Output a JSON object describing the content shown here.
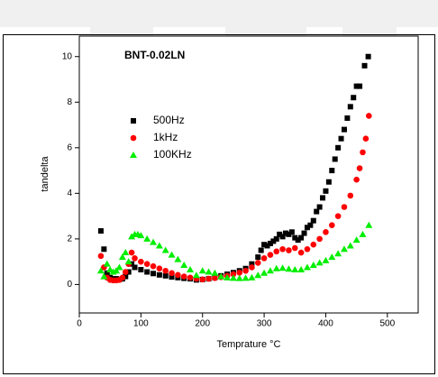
{
  "chart_data": {
    "type": "scatter",
    "annotation": "BNT-0.02LN",
    "x_label": "Temprature °C",
    "y_label": "tandelta",
    "xlim": [
      0,
      550
    ],
    "ylim": [
      -1.25,
      10.9
    ],
    "xticks": [
      0,
      100,
      200,
      300,
      400,
      500
    ],
    "yticks": [
      0,
      2,
      4,
      6,
      8,
      10
    ],
    "legend": "upper left",
    "series": [
      {
        "name": "500Hz",
        "color": "#000000",
        "marker": "square",
        "x": [
          35,
          40,
          45,
          50,
          55,
          60,
          65,
          70,
          75,
          80,
          85,
          90,
          100,
          110,
          120,
          130,
          140,
          150,
          160,
          170,
          180,
          190,
          200,
          210,
          220,
          230,
          240,
          250,
          260,
          270,
          280,
          290,
          295,
          300,
          305,
          310,
          315,
          320,
          325,
          330,
          335,
          340,
          345,
          350,
          355,
          360,
          365,
          370,
          375,
          380,
          385,
          390,
          395,
          400,
          405,
          410,
          415,
          420,
          425,
          430,
          435,
          440,
          445,
          450,
          455,
          463,
          469
        ],
        "values": [
          2.35,
          1.55,
          0.5,
          0.3,
          0.25,
          0.25,
          0.22,
          0.25,
          0.35,
          0.55,
          0.9,
          0.75,
          0.65,
          0.55,
          0.48,
          0.42,
          0.38,
          0.33,
          0.3,
          0.27,
          0.25,
          0.2,
          0.22,
          0.25,
          0.3,
          0.38,
          0.45,
          0.52,
          0.6,
          0.7,
          0.9,
          1.2,
          1.5,
          1.75,
          1.7,
          1.8,
          1.9,
          2.0,
          2.2,
          2.1,
          2.25,
          2.2,
          2.3,
          2.05,
          1.95,
          2.05,
          2.25,
          2.5,
          2.6,
          2.8,
          3.2,
          3.4,
          3.8,
          4.1,
          4.5,
          5.0,
          5.5,
          6.0,
          6.4,
          6.8,
          7.3,
          7.8,
          8.2,
          8.7,
          8.7,
          9.6,
          10.0
        ]
      },
      {
        "name": "1kHz",
        "color": "#ff0000",
        "marker": "circle",
        "x": [
          35,
          40,
          45,
          50,
          55,
          60,
          65,
          70,
          75,
          80,
          85,
          90,
          100,
          110,
          120,
          130,
          140,
          150,
          160,
          170,
          180,
          190,
          200,
          210,
          220,
          230,
          240,
          250,
          260,
          270,
          280,
          290,
          300,
          310,
          320,
          330,
          340,
          350,
          360,
          370,
          380,
          390,
          400,
          410,
          420,
          430,
          440,
          450,
          455,
          460,
          465,
          470
        ],
        "values": [
          1.25,
          0.75,
          0.3,
          0.2,
          0.18,
          0.18,
          0.2,
          0.3,
          0.55,
          0.9,
          1.4,
          1.15,
          1.0,
          0.9,
          0.8,
          0.7,
          0.6,
          0.5,
          0.42,
          0.35,
          0.3,
          0.25,
          0.22,
          0.25,
          0.28,
          0.32,
          0.38,
          0.45,
          0.52,
          0.6,
          0.75,
          0.95,
          1.15,
          1.3,
          1.45,
          1.55,
          1.5,
          1.6,
          1.4,
          1.55,
          1.75,
          2.0,
          2.3,
          2.6,
          3.0,
          3.4,
          3.9,
          4.6,
          5.1,
          5.8,
          6.4,
          7.4
        ]
      },
      {
        "name": "100KHz",
        "color": "#00ee00",
        "marker": "triangle",
        "x": [
          35,
          40,
          45,
          50,
          55,
          60,
          65,
          70,
          75,
          80,
          85,
          90,
          95,
          100,
          110,
          120,
          130,
          140,
          150,
          160,
          170,
          180,
          190,
          200,
          210,
          220,
          230,
          240,
          250,
          260,
          270,
          280,
          290,
          300,
          310,
          320,
          330,
          340,
          350,
          360,
          370,
          380,
          390,
          400,
          410,
          420,
          430,
          440,
          450,
          460,
          470
        ],
        "values": [
          0.6,
          0.35,
          0.9,
          0.65,
          0.55,
          0.6,
          0.75,
          1.2,
          1.4,
          1.0,
          2.1,
          2.2,
          2.2,
          2.15,
          2.0,
          1.85,
          1.7,
          1.5,
          1.3,
          1.1,
          0.85,
          0.65,
          0.4,
          0.6,
          0.55,
          0.5,
          0.35,
          0.3,
          0.28,
          0.27,
          0.28,
          0.3,
          0.4,
          0.5,
          0.6,
          0.7,
          0.72,
          0.68,
          0.65,
          0.65,
          0.75,
          0.85,
          0.95,
          1.05,
          1.2,
          1.35,
          1.55,
          1.7,
          1.95,
          2.2,
          2.6
        ]
      }
    ]
  }
}
